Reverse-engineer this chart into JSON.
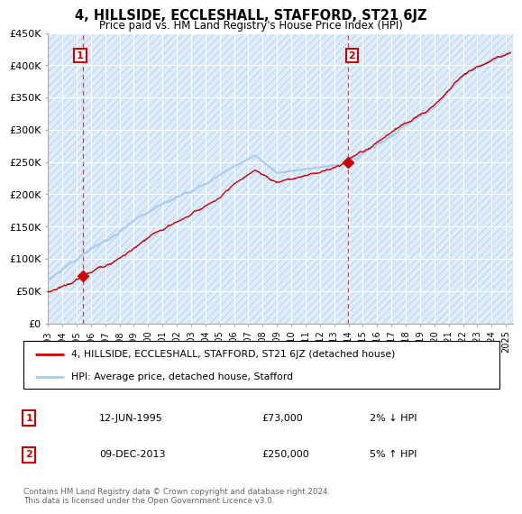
{
  "title": "4, HILLSIDE, ECCLESHALL, STAFFORD, ST21 6JZ",
  "subtitle": "Price paid vs. HM Land Registry's House Price Index (HPI)",
  "ylabel_ticks": [
    "£0",
    "£50K",
    "£100K",
    "£150K",
    "£200K",
    "£250K",
    "£300K",
    "£350K",
    "£400K",
    "£450K"
  ],
  "ytick_vals": [
    0,
    50000,
    100000,
    150000,
    200000,
    250000,
    300000,
    350000,
    400000,
    450000
  ],
  "ylim": [
    0,
    450000
  ],
  "xlim_start": 1993.0,
  "xlim_end": 2025.5,
  "bg_color": "#ddeeff",
  "sale_line_color": "#cc0000",
  "hpi_line_color": "#aaccee",
  "marker_color": "#cc0000",
  "sale1_x": 1995.45,
  "sale1_y": 73000,
  "sale1_label": "1",
  "sale2_x": 2013.94,
  "sale2_y": 250000,
  "sale2_label": "2",
  "vline_color": "#cc4444",
  "legend_sale_label": "4, HILLSIDE, ECCLESHALL, STAFFORD, ST21 6JZ (detached house)",
  "legend_hpi_label": "HPI: Average price, detached house, Stafford",
  "table_rows": [
    {
      "num": "1",
      "date": "12-JUN-1995",
      "price": "£73,000",
      "hpi": "2% ↓ HPI"
    },
    {
      "num": "2",
      "date": "09-DEC-2013",
      "price": "£250,000",
      "hpi": "5% ↑ HPI"
    }
  ],
  "footnote": "Contains HM Land Registry data © Crown copyright and database right 2024.\nThis data is licensed under the Open Government Licence v3.0.",
  "xtick_years": [
    1993,
    1994,
    1995,
    1996,
    1997,
    1998,
    1999,
    2000,
    2001,
    2002,
    2003,
    2004,
    2005,
    2006,
    2007,
    2008,
    2009,
    2010,
    2011,
    2012,
    2013,
    2014,
    2015,
    2016,
    2017,
    2018,
    2019,
    2020,
    2021,
    2022,
    2023,
    2024,
    2025
  ]
}
